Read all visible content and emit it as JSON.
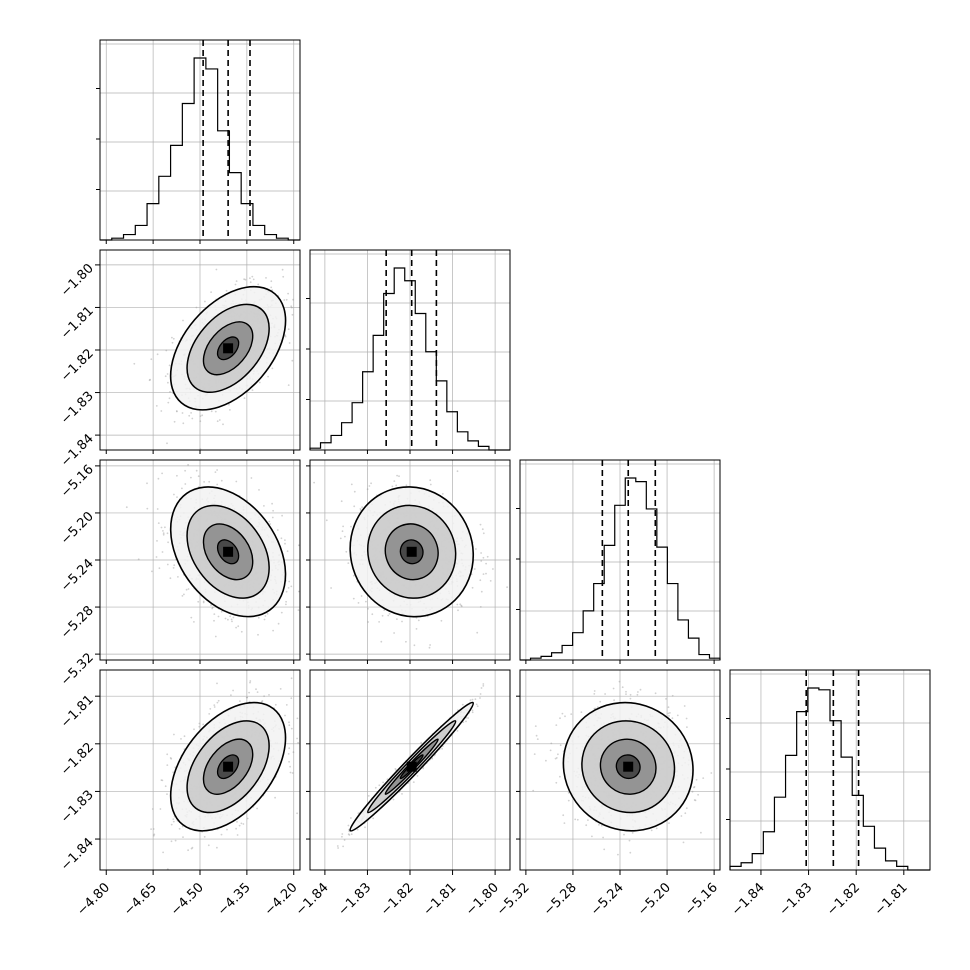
{
  "chart_data": {
    "type": "corner",
    "parameters": [
      {
        "ticks": [
          "−4.80",
          "−4.65",
          "−4.50",
          "−4.35",
          "−4.20"
        ],
        "range": [
          -4.82,
          -4.18
        ],
        "quantiles": [
          -4.49,
          -4.41,
          -4.34
        ]
      },
      {
        "ticks": [
          "−1.84",
          "−1.83",
          "−1.82",
          "−1.81",
          "−1.80"
        ],
        "range": [
          -1.8435,
          -1.7965
        ],
        "quantiles": [
          -1.8256,
          -1.8196,
          -1.8138
        ]
      },
      {
        "ticks": [
          "−5.32",
          "−5.28",
          "−5.24",
          "−5.20",
          "−5.16"
        ],
        "range": [
          -5.325,
          -5.155
        ],
        "quantiles": [
          -5.255,
          -5.233,
          -5.21
        ]
      },
      {
        "ticks": [
          "−1.84",
          "−1.83",
          "−1.82",
          "−1.81"
        ],
        "range": [
          -1.8465,
          -1.8045
        ],
        "quantiles": [
          -1.8305,
          -1.8248,
          -1.8195
        ]
      }
    ],
    "histograms": [
      [
        0,
        1,
        3,
        8,
        20,
        35,
        52,
        75,
        100,
        94,
        60,
        37,
        20,
        8,
        3,
        1,
        0
      ],
      [
        1,
        4,
        8,
        15,
        26,
        43,
        63,
        86,
        100,
        93,
        75,
        54,
        38,
        21,
        10,
        5,
        2,
        0,
        0
      ],
      [
        0,
        1,
        2,
        4,
        8,
        15,
        27,
        42,
        63,
        85,
        100,
        98,
        83,
        62,
        42,
        22,
        12,
        3,
        1
      ],
      [
        2,
        4,
        9,
        21,
        40,
        63,
        87,
        100,
        99,
        82,
        62,
        41,
        24,
        12,
        5,
        2,
        0,
        0
      ]
    ],
    "correlations": [
      {
        "pair": [
          1,
          0
        ],
        "rho": 0.45
      },
      {
        "pair": [
          2,
          0
        ],
        "rho": -0.35
      },
      {
        "pair": [
          2,
          1
        ],
        "rho": -0.05
      },
      {
        "pair": [
          3,
          0
        ],
        "rho": 0.45
      },
      {
        "pair": [
          3,
          1
        ],
        "rho": 0.985
      },
      {
        "pair": [
          3,
          2
        ],
        "rho": -0.05
      }
    ],
    "quantile_line_style": "dashed",
    "grid": true,
    "colors": {
      "contour": "#000000",
      "hist": "#000000",
      "scatter": "#9a9a9a",
      "grid": "#b0b0b0"
    }
  }
}
